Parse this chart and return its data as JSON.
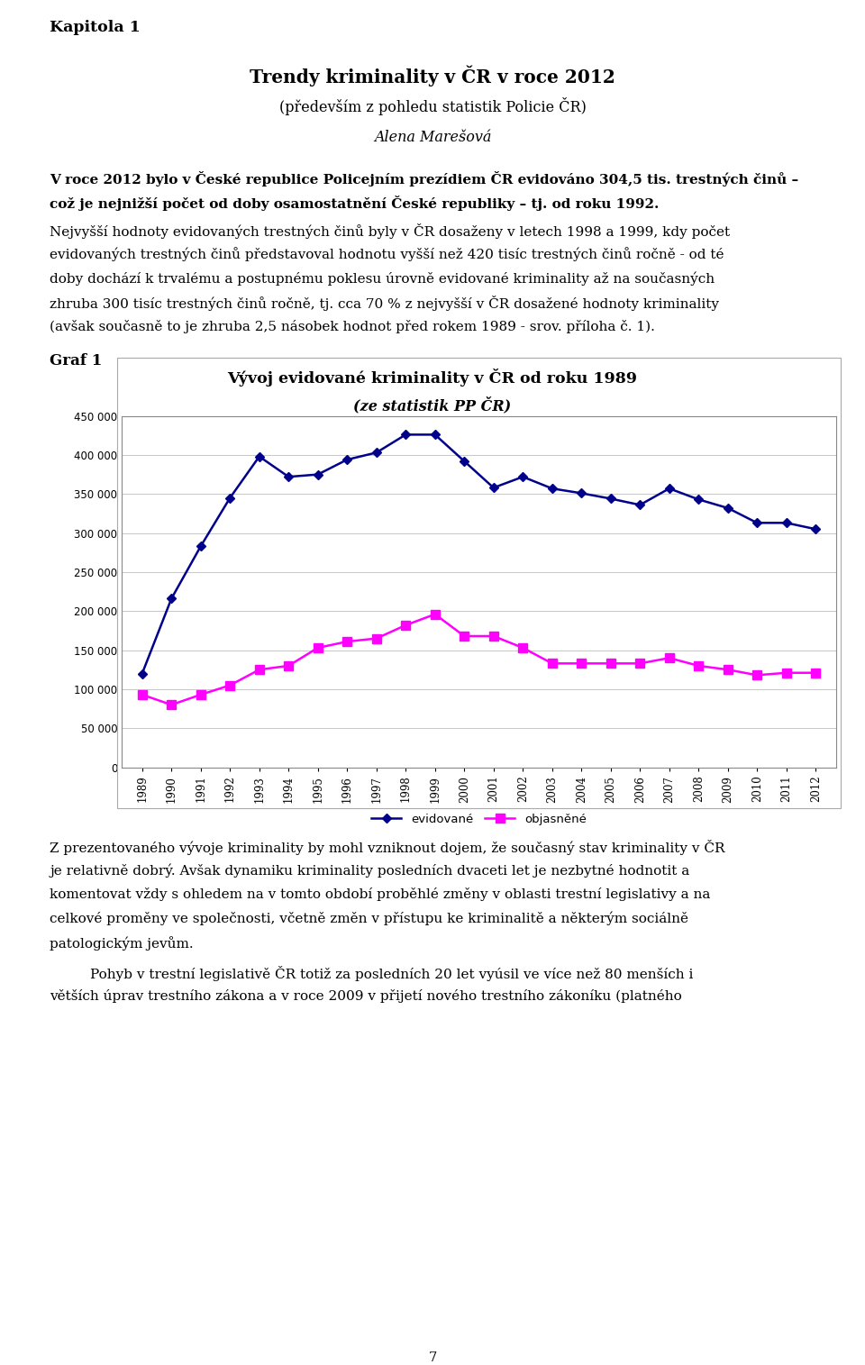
{
  "title_line1": "Vývoj evidované kriminality v ČR od roku 1989",
  "title_line2": "(ze statistik PP ČR)",
  "years": [
    1989,
    1990,
    1991,
    1992,
    1993,
    1994,
    1995,
    1996,
    1997,
    1998,
    1999,
    2000,
    2001,
    2002,
    2003,
    2004,
    2005,
    2006,
    2007,
    2008,
    2009,
    2010,
    2011,
    2012
  ],
  "evidovane": [
    120000,
    216000,
    283000,
    345000,
    398000,
    372000,
    375000,
    394000,
    403000,
    426000,
    426000,
    392000,
    358000,
    372000,
    357000,
    351000,
    344000,
    336000,
    357000,
    343000,
    332000,
    313000,
    313000,
    305000
  ],
  "objasnene": [
    93000,
    80000,
    93000,
    105000,
    125000,
    130000,
    153000,
    161000,
    165000,
    182000,
    196000,
    168000,
    168000,
    153000,
    133000,
    133000,
    133000,
    133000,
    140000,
    130000,
    125000,
    118000,
    121000,
    121000
  ],
  "evidovane_color": "#00008B",
  "objasnene_color": "#FF00FF",
  "ylim": [
    0,
    450000
  ],
  "yticks": [
    0,
    50000,
    100000,
    150000,
    200000,
    250000,
    300000,
    350000,
    400000,
    450000
  ],
  "legend_evidovane": "evidované",
  "legend_objasnene": "objasněné",
  "page_title": "Kapitola 1",
  "doc_title1": "Trendy kriminality v ČR v roce 2012",
  "doc_subtitle": "(především z pohledu statistik Policie ČR)",
  "doc_author": "Alena Marešová",
  "para1_bold": "V roce 2012 bylo v České republice Policejním prezídiem ČR evidováno 304,5 tis. trestných činů – což je nejnižší počet od doby osamostatnění České republiky – tj. od roku 1992.",
  "para2": "Nejvyšší hodnoty evidovaných trestných činů byly v ČR dosaženy v letech 1998 a 1999, kdy počet evidovaných trestných činů představoval hodnotu vyšší než 420 tisíc trestných činů ročně - od té doby dochází k trvalému a postupnému poklesu úrovně evidované kriminality až na současných zhruba 300 tisíc trestných činů ročně, tj. cca 70 % z nejvyšší v ČR dosažené hodnoty kriminality (avšak současně to je zhruba 2,5 násobek hodnot před rokem 1989 - srov. příloha č. 1).",
  "graf_label": "Graf 1",
  "para3": "Z prezentovaného vývoje kriminality by mohl vzniknout dojem, že současný stav kriminality v ČR je relativně dobrý. Avšak dynamiku kriminality posledních dvaceti let je nezbytné hodnotit a komentovat vždy s ohledem na v tomto období proběhlé změny v oblasti trestní legislativy a na celkové proměny ve společnosti, včetně změn v přístupu ke kriminalitě a některým sociálně patologickým jevům.",
  "para4": "Pohyb v trestní legislativě ČR totiž za posledních 20 let vyúsil ve více než 80 menších i větších úprav trestního zákona a v roce 2009 v přijetí nového trestního zákoníku (platného",
  "page_number": "7",
  "background_color": "#ffffff",
  "text_color": "#000000",
  "grid_color": "#c8c8c8",
  "border_color": "#000000"
}
